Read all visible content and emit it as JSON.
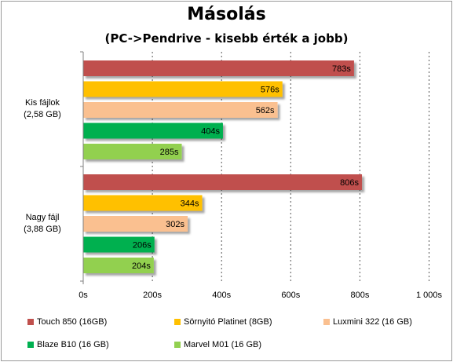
{
  "chart_data": {
    "type": "bar",
    "orientation": "horizontal",
    "title": "Másolás",
    "subtitle": "(PC->Pendrive - kisebb érték a jobb)",
    "categories": [
      {
        "line1": "Kis fájlok",
        "line2": "(2,58 GB)"
      },
      {
        "line1": "Nagy fájl",
        "line2": "(3,88 GB)"
      }
    ],
    "series": [
      {
        "name": "Touch 850 (16GB)",
        "color": "#c0504d",
        "values": [
          783,
          806
        ],
        "labels": [
          "783s",
          "806s"
        ]
      },
      {
        "name": "Sörnyitó Platinet (8GB)",
        "color": "#ffc000",
        "values": [
          576,
          344
        ],
        "labels": [
          "576s",
          "344s"
        ]
      },
      {
        "name": "Luxmini 322 (16 GB)",
        "color": "#fac090",
        "values": [
          562,
          302
        ],
        "labels": [
          "562s",
          "302s"
        ]
      },
      {
        "name": "Blaze B10 (16 GB)",
        "color": "#00b050",
        "values": [
          404,
          206
        ],
        "labels": [
          "404s",
          "206s"
        ]
      },
      {
        "name": "Marvel M01 (16 GB)",
        "color": "#92d050",
        "values": [
          285,
          204
        ],
        "labels": [
          "285s",
          "204s"
        ]
      }
    ],
    "xlim": [
      0,
      1000
    ],
    "ticks": [
      0,
      200,
      400,
      600,
      800,
      1000
    ],
    "tick_labels": [
      "0s",
      "200s",
      "400s",
      "600s",
      "800s",
      "1 000s"
    ],
    "grid": "vertical dashed",
    "legend_position": "bottom"
  }
}
